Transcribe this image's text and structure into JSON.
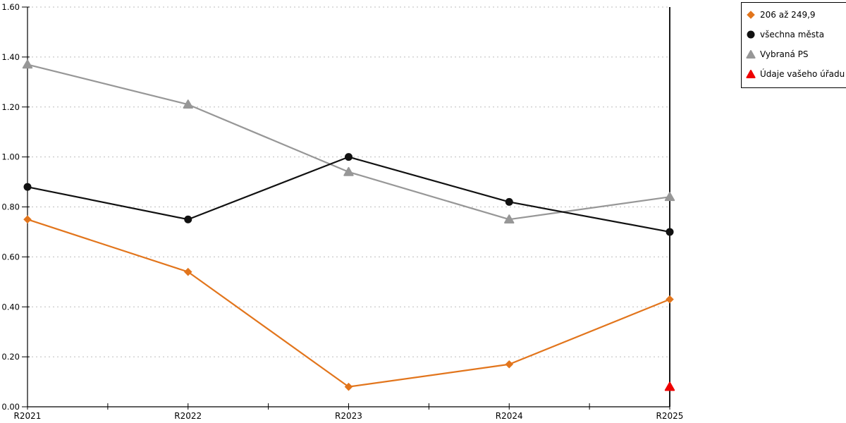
{
  "chart_data": {
    "type": "line",
    "title": "",
    "xlabel": "",
    "ylabel": "",
    "categories": [
      "R2021",
      "R2022",
      "R2023",
      "R2024",
      "R2025"
    ],
    "series": [
      {
        "name": "206 až 249,9",
        "color": "#E2751C",
        "marker": "diamond",
        "values": [
          0.75,
          0.54,
          0.08,
          0.17,
          0.43
        ]
      },
      {
        "name": "všechna města",
        "color": "#111111",
        "marker": "circle",
        "values": [
          0.88,
          0.75,
          1.0,
          0.82,
          0.7
        ]
      },
      {
        "name": "Vybraná PS",
        "color": "#979797",
        "marker": "triangle",
        "values": [
          1.37,
          1.21,
          0.94,
          0.75,
          0.84
        ]
      },
      {
        "name": "Údaje vašeho úřadu",
        "color": "#EE0000",
        "marker": "triangle",
        "values": [
          null,
          null,
          null,
          null,
          0.08
        ]
      }
    ],
    "ylim": [
      0.0,
      1.6
    ],
    "ytick_step": 0.2,
    "ytick_labels": [
      "0.00",
      "0.20",
      "0.40",
      "0.60",
      "0.80",
      "1.00",
      "1.20",
      "1.40",
      "1.60"
    ],
    "grid": "horizontal-dashed",
    "legend_position": "top-right"
  },
  "colors": {
    "background": "#FFFFFF",
    "axis": "#000000",
    "gridline": "#BDBDBD",
    "text": "#000000"
  }
}
